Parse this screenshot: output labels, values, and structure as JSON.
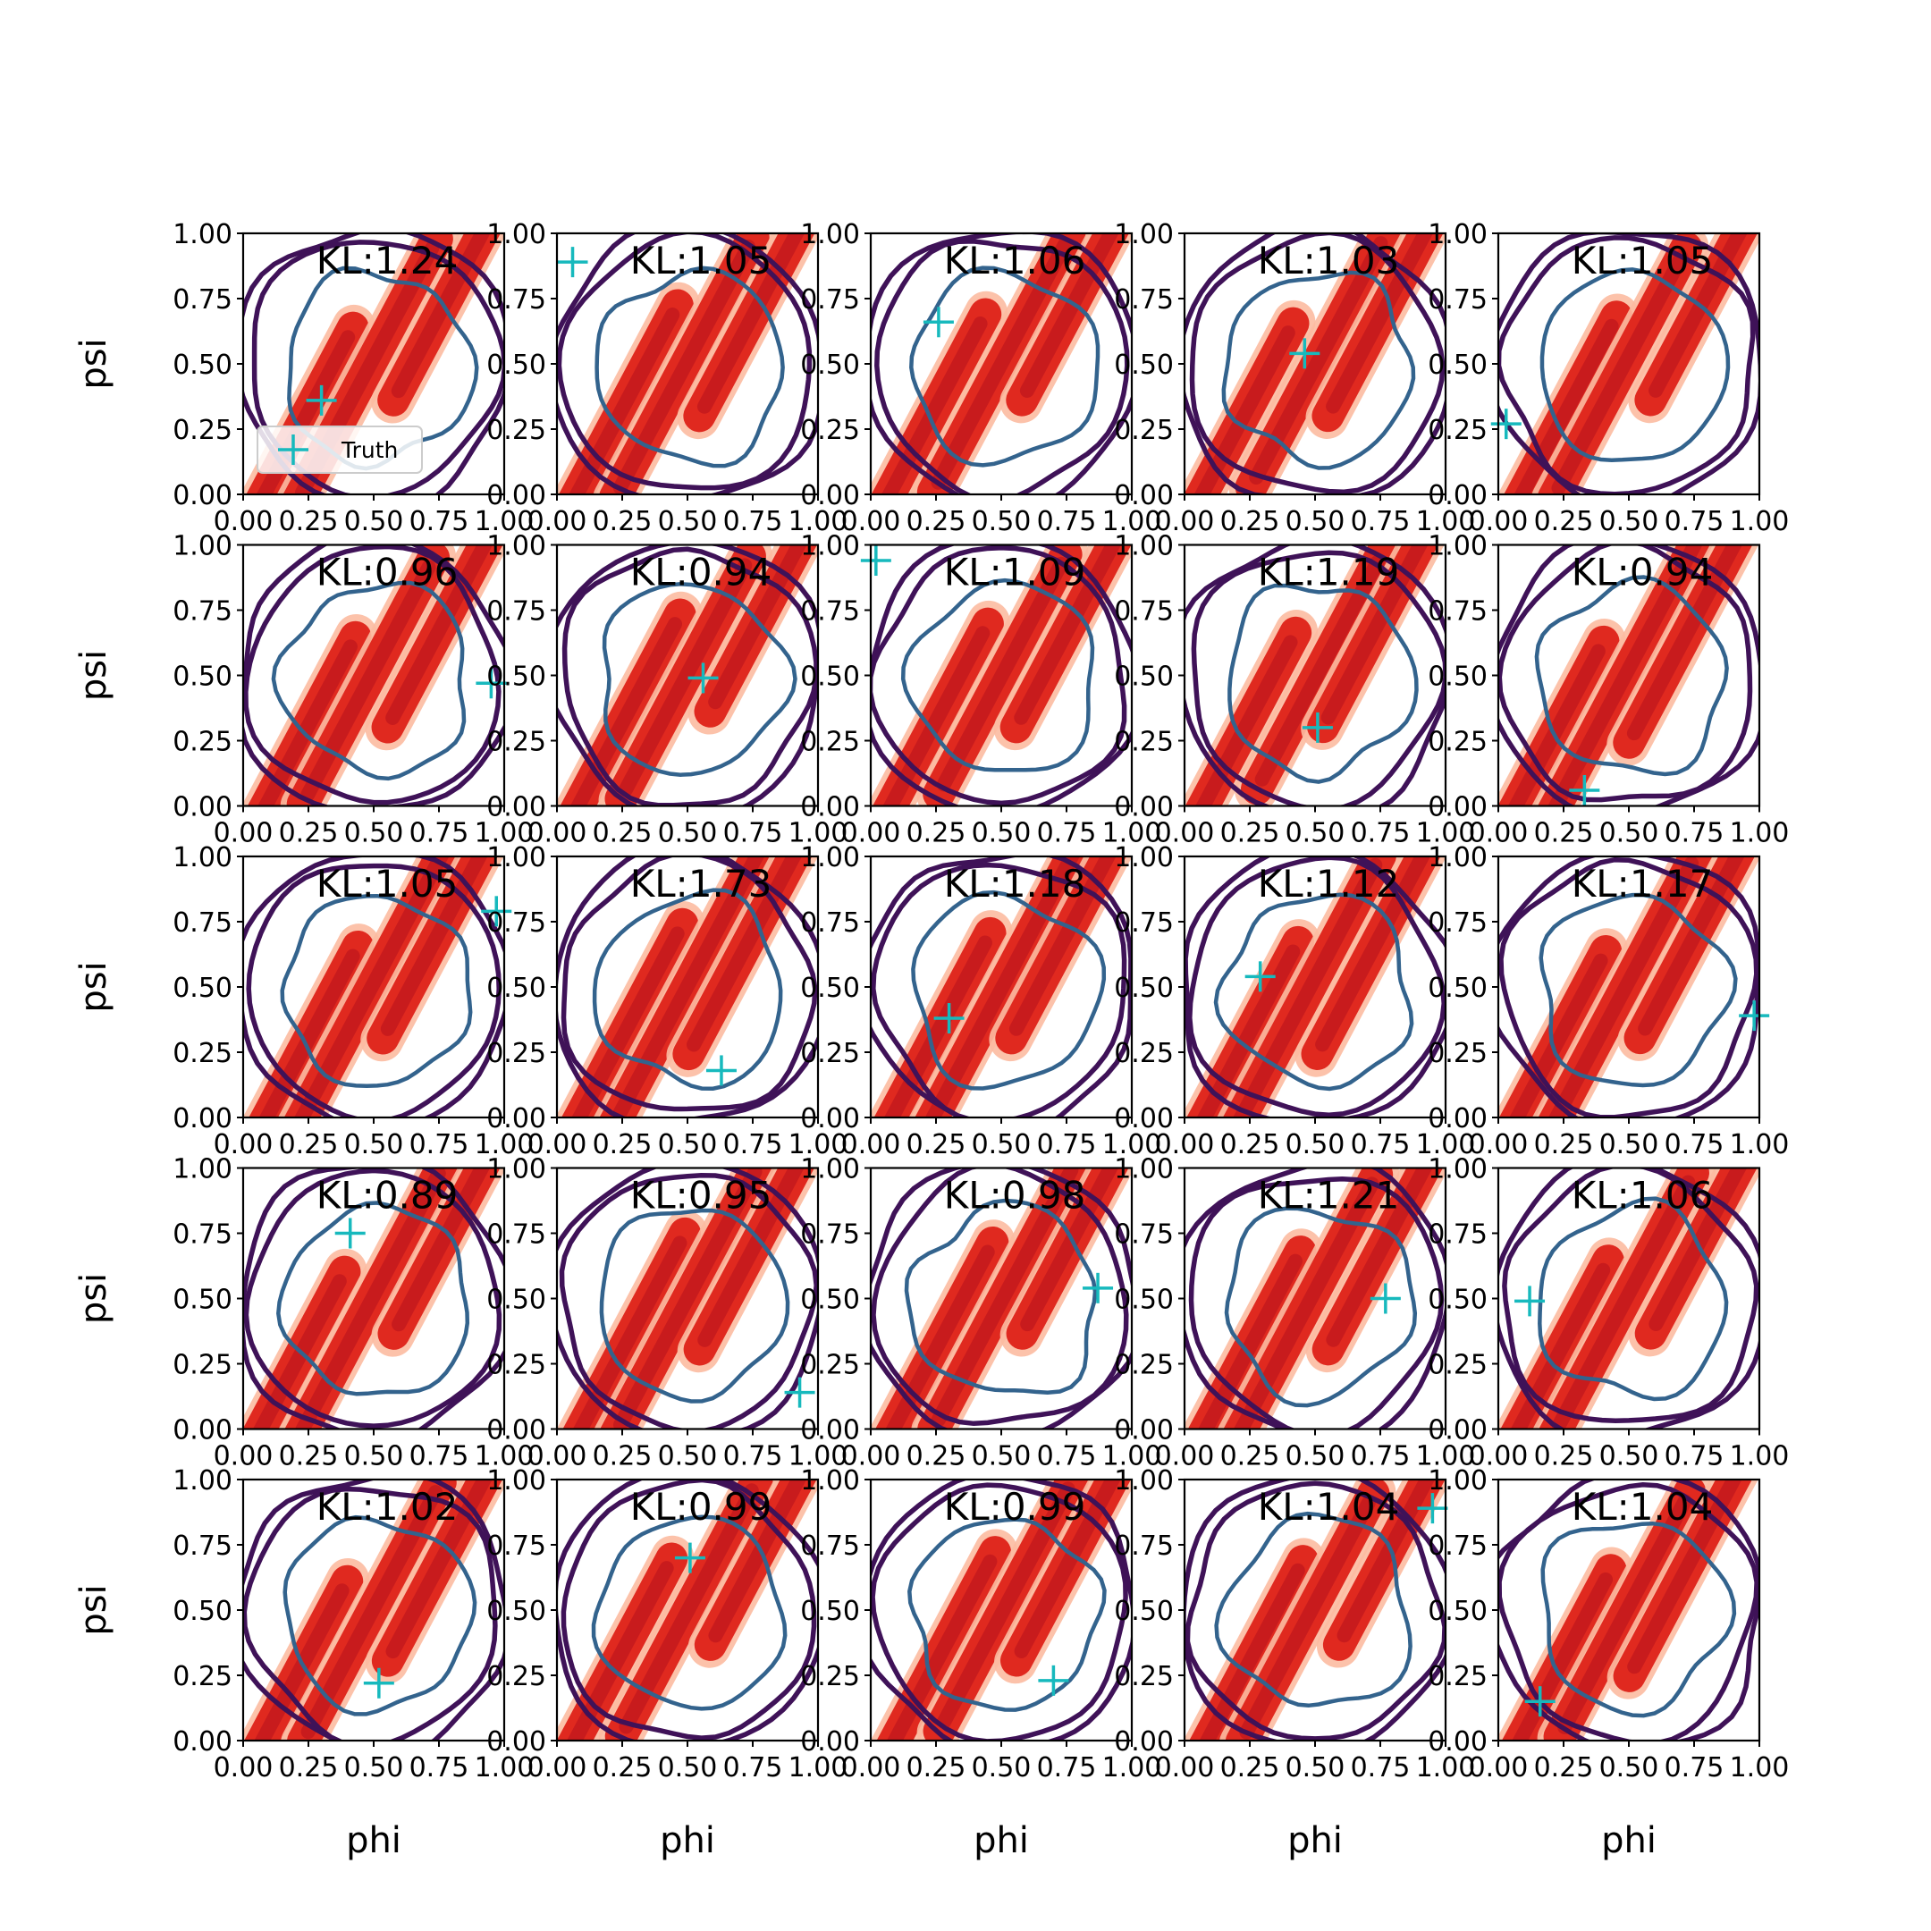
{
  "figure": {
    "xlabel": "phi",
    "ylabel": "psi",
    "legend_label": "Truth",
    "kl_prefix": "KL:"
  },
  "chart_data": {
    "type": "contour",
    "layout": {
      "rows": 5,
      "cols": 5
    },
    "xlim": [
      0,
      1
    ],
    "ylim": [
      0,
      1
    ],
    "ticks": [
      0.0,
      0.25,
      0.5,
      0.75,
      1.0
    ],
    "tick_labels": [
      "0.00",
      "0.25",
      "0.50",
      "0.75",
      "1.00"
    ],
    "legend": {
      "label": "Truth",
      "placement": "lower-left",
      "subplot": 0
    },
    "colors": {
      "density_light": "#fcbba1",
      "density_mid": "#fb6a4a",
      "density_dark": "#e0291f",
      "density_darkest": "#c81b1d",
      "contour_outer": "#3f1258",
      "contour_inner": "#33638d",
      "truth_marker": "#17b9bd"
    },
    "panels": [
      {
        "kl": "1.24",
        "truth": [
          0.3,
          0.36
        ]
      },
      {
        "kl": "1.05",
        "truth": [
          0.06,
          0.89
        ]
      },
      {
        "kl": "1.06",
        "truth": [
          0.26,
          0.66
        ]
      },
      {
        "kl": "1.03",
        "truth": [
          0.46,
          0.54
        ]
      },
      {
        "kl": "1.05",
        "truth": [
          0.03,
          0.27
        ]
      },
      {
        "kl": "0.96",
        "truth": [
          0.95,
          0.47
        ]
      },
      {
        "kl": "0.94",
        "truth": [
          0.56,
          0.49
        ]
      },
      {
        "kl": "1.09",
        "truth": [
          0.02,
          0.94
        ]
      },
      {
        "kl": "1.19",
        "truth": [
          0.51,
          0.3
        ]
      },
      {
        "kl": "0.94",
        "truth": [
          0.33,
          0.06
        ]
      },
      {
        "kl": "1.05",
        "truth": [
          0.97,
          0.79
        ]
      },
      {
        "kl": "1.73",
        "truth": [
          0.63,
          0.18
        ]
      },
      {
        "kl": "1.18",
        "truth": [
          0.3,
          0.38
        ]
      },
      {
        "kl": "1.12",
        "truth": [
          0.29,
          0.54
        ]
      },
      {
        "kl": "1.17",
        "truth": [
          0.98,
          0.39
        ]
      },
      {
        "kl": "0.89",
        "truth": [
          0.41,
          0.75
        ]
      },
      {
        "kl": "0.95",
        "truth": [
          0.93,
          0.14
        ]
      },
      {
        "kl": "0.98",
        "truth": [
          0.87,
          0.54
        ]
      },
      {
        "kl": "1.21",
        "truth": [
          0.77,
          0.5
        ]
      },
      {
        "kl": "1.06",
        "truth": [
          0.12,
          0.49
        ]
      },
      {
        "kl": "1.02",
        "truth": [
          0.52,
          0.22
        ]
      },
      {
        "kl": "0.99",
        "truth": [
          0.51,
          0.7
        ]
      },
      {
        "kl": "0.99",
        "truth": [
          0.7,
          0.23
        ]
      },
      {
        "kl": "1.04",
        "truth": [
          0.95,
          0.89
        ]
      },
      {
        "kl": "1.04",
        "truth": [
          0.16,
          0.15
        ]
      }
    ]
  }
}
